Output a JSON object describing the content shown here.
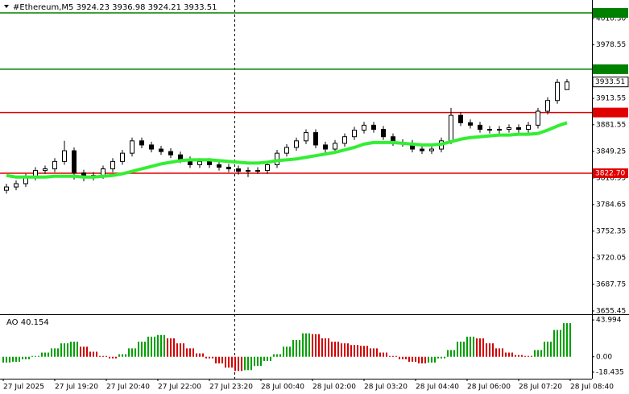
{
  "chart_data": {
    "type": "candlestick",
    "title": "#Ethereum,M5  3924.23 3936.98 3924.21 3933.51",
    "time_labels": [
      "27 Jul 2025",
      "27 Jul 19:20",
      "27 Jul 20:40",
      "27 Jul 22:00",
      "27 Jul 23:20",
      "28 Jul 00:40",
      "28 Jul 02:00",
      "28 Jul 03:20",
      "28 Jul 04:40",
      "28 Jul 06:00",
      "28 Jul 07:20",
      "28 Jul 08:40"
    ],
    "ylim": [
      3651.5,
      4033
    ],
    "yticks": [
      {
        "value": 4010.3,
        "label": "4010.30"
      },
      3978.55,
      3913.55,
      3881.55,
      3849.25,
      3816.95,
      3784.65,
      3752.35,
      3720.05,
      3687.75,
      3655.45
    ],
    "levels": [
      {
        "value": 4017.33,
        "color": "#008000"
      },
      {
        "value": 3948.98,
        "color": "#008000"
      },
      {
        "value": 3896.41,
        "color": "#e00000"
      },
      {
        "value": 3822.7,
        "label": "3822.70",
        "color": "#e00000"
      }
    ],
    "open": [
      3802,
      3806,
      3810,
      3818,
      3826,
      3828,
      3837,
      3850,
      3823,
      3818,
      3820,
      3828,
      3837,
      3847,
      3862,
      3857,
      3852,
      3849,
      3845,
      3839,
      3833,
      3837,
      3833,
      3830,
      3828,
      3825,
      3826,
      3826,
      3833,
      3847,
      3854,
      3862,
      3872,
      3857,
      3852,
      3859,
      3867,
      3875,
      3881,
      3876,
      3867,
      3860,
      3859,
      3852,
      3850,
      3852,
      3862,
      3893,
      3884,
      3881,
      3876,
      3875,
      3876,
      3878,
      3876,
      3881,
      3898,
      3911,
      3924.23
    ],
    "high": [
      3810,
      3814,
      3822,
      3830,
      3832,
      3841,
      3862,
      3854,
      3827,
      3824,
      3832,
      3841,
      3851,
      3866,
      3866,
      3861,
      3856,
      3853,
      3849,
      3843,
      3841,
      3841,
      3837,
      3834,
      3832,
      3830,
      3830,
      3837,
      3851,
      3858,
      3866,
      3876,
      3876,
      3861,
      3863,
      3871,
      3879,
      3885,
      3885,
      3880,
      3871,
      3864,
      3863,
      3856,
      3856,
      3866,
      3902,
      3897,
      3888,
      3885,
      3880,
      3880,
      3882,
      3882,
      3885,
      3902,
      3915,
      3937,
      3936.98
    ],
    "low": [
      3798,
      3802,
      3806,
      3814,
      3822,
      3824,
      3833,
      3815,
      3813,
      3814,
      3816,
      3824,
      3833,
      3843,
      3853,
      3848,
      3845,
      3841,
      3835,
      3829,
      3829,
      3829,
      3826,
      3824,
      3821,
      3818,
      3822,
      3822,
      3829,
      3843,
      3850,
      3858,
      3853,
      3846,
      3848,
      3855,
      3863,
      3871,
      3872,
      3863,
      3856,
      3855,
      3848,
      3846,
      3846,
      3848,
      3858,
      3880,
      3877,
      3872,
      3871,
      3871,
      3872,
      3872,
      3872,
      3877,
      3894,
      3907,
      3924.21
    ],
    "close": [
      3806,
      3810,
      3818,
      3826,
      3828,
      3837,
      3850,
      3823,
      3818,
      3820,
      3828,
      3837,
      3847,
      3862,
      3857,
      3852,
      3849,
      3845,
      3839,
      3833,
      3837,
      3833,
      3830,
      3828,
      3825,
      3826,
      3826,
      3833,
      3847,
      3854,
      3862,
      3872,
      3857,
      3852,
      3859,
      3867,
      3875,
      3881,
      3876,
      3867,
      3860,
      3859,
      3852,
      3850,
      3852,
      3862,
      3893,
      3884,
      3881,
      3876,
      3875,
      3876,
      3878,
      3876,
      3881,
      3898,
      3911,
      3933,
      3933.51
    ],
    "candle_color": "#000000",
    "ma": {
      "color": "#33ee33",
      "values": [
        3820,
        3818,
        3818,
        3818,
        3818,
        3819,
        3819,
        3819,
        3818,
        3818,
        3819,
        3820,
        3822,
        3825,
        3828,
        3831,
        3834,
        3836,
        3838,
        3839,
        3839,
        3839,
        3838,
        3837,
        3836,
        3835,
        3835,
        3836,
        3838,
        3839,
        3840,
        3842,
        3844,
        3846,
        3848,
        3851,
        3854,
        3858,
        3860,
        3860,
        3860,
        3859,
        3858,
        3857,
        3857,
        3858,
        3861,
        3864,
        3866,
        3867,
        3868,
        3869,
        3869,
        3870,
        3870,
        3871,
        3875,
        3880,
        3884
      ]
    },
    "indicator": {
      "type": "bar",
      "title": "AO 40.154",
      "ylim": [
        -26.24,
        49.85
      ],
      "yticks": [
        43.994,
        {
          "value": 0,
          "label": "0.00"
        },
        -18.435
      ],
      "up_color": "#00a000",
      "down_color": "#d00000",
      "values": [
        -7,
        -6,
        -3,
        1,
        5,
        10,
        16,
        18,
        12,
        6,
        1,
        -2,
        3,
        10,
        18,
        24,
        26,
        22,
        16,
        10,
        4,
        -2,
        -8,
        -13,
        -17,
        -16,
        -11,
        -5,
        3,
        12,
        20,
        28,
        27,
        22,
        18,
        16,
        14,
        13,
        10,
        5,
        1,
        -3,
        -6,
        -8,
        -7,
        -2,
        8,
        18,
        24,
        22,
        16,
        10,
        5,
        2,
        1,
        8,
        18,
        32,
        40.154
      ]
    }
  }
}
